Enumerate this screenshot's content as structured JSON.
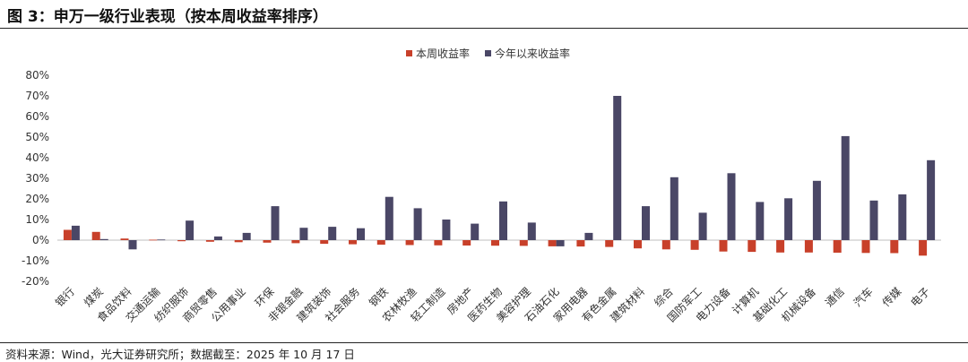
{
  "figure_title": "图 3：申万一级行业表现（按本周收益率排序）",
  "source_note": "资料来源：Wind，光大证券研究所；数据截至：2025 年 10 月 17 日",
  "colors": {
    "weekly": "#c8402a",
    "ytd": "#4a4766"
  },
  "chart_data": {
    "type": "bar",
    "title": "",
    "xlabel": "",
    "ylabel": "",
    "ylim": [
      -20,
      80
    ],
    "yticks": [
      -20,
      -10,
      0,
      10,
      20,
      30,
      40,
      50,
      60,
      70,
      80
    ],
    "ytick_labels": [
      "-20%",
      "-10%",
      "0%",
      "10%",
      "20%",
      "30%",
      "40%",
      "50%",
      "60%",
      "70%",
      "80%"
    ],
    "grid": false,
    "legend_position": "top-center",
    "categories": [
      "银行",
      "煤炭",
      "食品饮料",
      "交通运输",
      "纺织服饰",
      "商贸零售",
      "公用事业",
      "环保",
      "非银金融",
      "建筑装饰",
      "社会服务",
      "钢铁",
      "农林牧渔",
      "轻工制造",
      "房地产",
      "医药生物",
      "美容护理",
      "石油石化",
      "家用电器",
      "有色金属",
      "建筑材料",
      "综合",
      "国防军工",
      "电力设备",
      "计算机",
      "基础化工",
      "机械设备",
      "通信",
      "汽车",
      "传媒",
      "电子"
    ],
    "series": [
      {
        "name": "本周收益率",
        "values": [
          5.0,
          4.0,
          0.8,
          0.2,
          -0.5,
          -0.8,
          -1.0,
          -1.2,
          -1.5,
          -1.8,
          -2.0,
          -2.2,
          -2.4,
          -2.5,
          -2.6,
          -2.7,
          -2.8,
          -3.0,
          -3.1,
          -3.3,
          -4.0,
          -4.5,
          -4.7,
          -5.5,
          -5.7,
          -6.0,
          -6.0,
          -6.1,
          -6.2,
          -6.3,
          -7.5
        ]
      },
      {
        "name": "今年以来收益率",
        "values": [
          7.0,
          0.5,
          -4.5,
          0.3,
          9.5,
          1.8,
          3.5,
          16.5,
          6.0,
          6.5,
          5.8,
          21.0,
          15.5,
          10.0,
          8.0,
          18.8,
          8.5,
          -3.0,
          3.5,
          70.0,
          16.5,
          30.5,
          13.3,
          32.5,
          18.5,
          20.3,
          28.8,
          50.5,
          19.2,
          22.2,
          38.8
        ]
      }
    ]
  }
}
